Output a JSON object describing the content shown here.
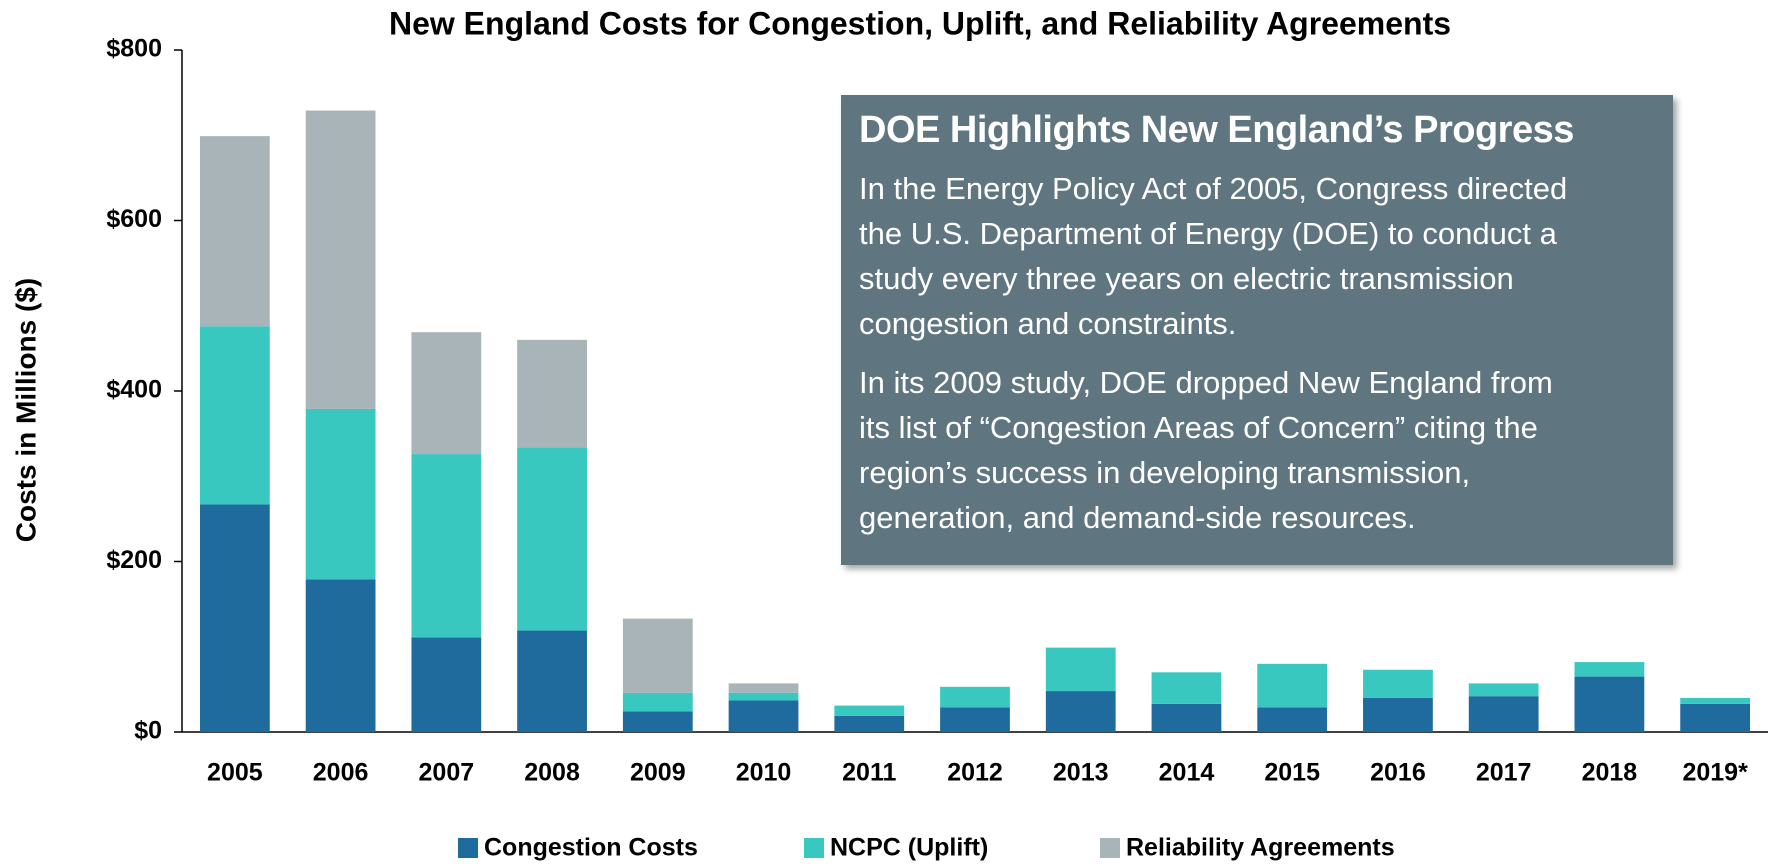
{
  "chart_data": {
    "type": "stacked_bar",
    "title": "New England Costs for Congestion, Uplift, and Reliability Agreements",
    "ylabel": "Costs in Millions ($)",
    "categories": [
      "2005",
      "2006",
      "2007",
      "2008",
      "2009",
      "2010",
      "2011",
      "2012",
      "2013",
      "2014",
      "2015",
      "2016",
      "2017",
      "2018",
      "2019*"
    ],
    "series": [
      {
        "name": "Congestion Costs",
        "color": "#1f6b9e",
        "values": [
          267,
          179,
          111,
          119,
          24,
          37,
          19,
          29,
          48,
          33,
          29,
          40,
          42,
          65,
          33
        ]
      },
      {
        "name": "NCPC (Uplift)",
        "color": "#38c8c0",
        "values": [
          209,
          200,
          215,
          215,
          22,
          9,
          12,
          24,
          51,
          37,
          51,
          33,
          15,
          17,
          7
        ]
      },
      {
        "name": "Reliability Agreements",
        "color": "#a8b4b8",
        "values": [
          223,
          350,
          143,
          126,
          87,
          11,
          0,
          0,
          0,
          0,
          0,
          0,
          0,
          0,
          0
        ]
      }
    ],
    "ylim": [
      0,
      800
    ],
    "yticks": [
      {
        "value": 0,
        "label": "$0"
      },
      {
        "value": 200,
        "label": "$200"
      },
      {
        "value": 400,
        "label": "$400"
      },
      {
        "value": 600,
        "label": "$600"
      },
      {
        "value": 800,
        "label": "$800"
      }
    ],
    "legend": "bottom",
    "annotation": {
      "title": "DOE Highlights New England’s Progress",
      "paragraphs": [
        [
          "In the Energy Policy Act of 2005, Congress directed",
          "the U.S. Department of Energy (DOE) to conduct a",
          "study every three years on electric transmission",
          "congestion and constraints."
        ],
        [
          "In its 2009 study, DOE dropped New England from",
          "its list of “Congestion Areas of Concern” citing the",
          "region’s success in developing transmission,",
          "generation, and demand-side resources."
        ]
      ]
    }
  }
}
